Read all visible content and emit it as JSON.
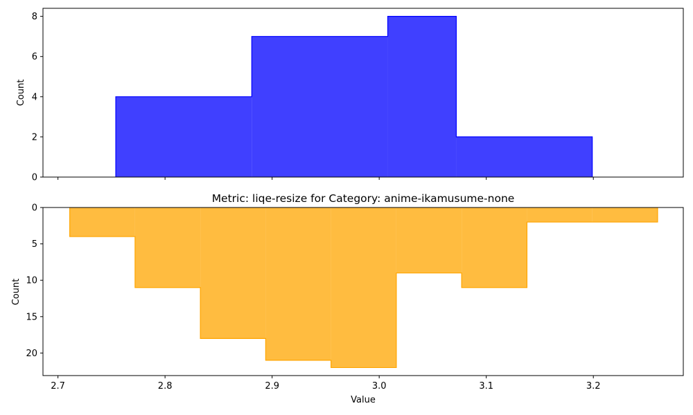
{
  "chart_data": [
    {
      "type": "bar",
      "subtype": "histogram-step-filled",
      "title": "",
      "xlabel": "",
      "ylabel": "Count",
      "color": "#0000ff",
      "alpha": 0.75,
      "bin_edges": [
        2.754,
        2.881,
        3.008,
        3.072,
        3.199
      ],
      "values": [
        4,
        7,
        8,
        2
      ],
      "xlim": [
        2.686,
        3.284
      ],
      "ylim": [
        0,
        8.4
      ],
      "xticks": [
        2.7,
        2.8,
        2.9,
        3.0,
        3.1,
        3.2
      ],
      "xtick_labels_visible": false,
      "yticks": [
        0,
        2,
        4,
        6,
        8
      ],
      "ytick_labels": [
        "0",
        "2",
        "4",
        "6",
        "8"
      ],
      "y_inverted": false,
      "grid": false
    },
    {
      "type": "bar",
      "subtype": "histogram-step-filled",
      "title": "Metric: liqe-resize for Category: anime-ikamusume-none",
      "xlabel": "Value",
      "ylabel": "Count",
      "color": "#ffa500",
      "alpha": 0.75,
      "bin_edges": [
        2.711,
        2.772,
        2.833,
        2.894,
        2.955,
        3.016,
        3.077,
        3.138,
        3.199,
        3.26
      ],
      "values": [
        4,
        11,
        18,
        21,
        22,
        9,
        11,
        2,
        2
      ],
      "xlim": [
        2.686,
        3.284
      ],
      "ylim": [
        23.1,
        0
      ],
      "xticks": [
        2.7,
        2.8,
        2.9,
        3.0,
        3.1,
        3.2
      ],
      "xtick_labels": [
        "2.7",
        "2.8",
        "2.9",
        "3.0",
        "3.1",
        "3.2"
      ],
      "xtick_labels_visible": true,
      "yticks": [
        0,
        5,
        10,
        15,
        20
      ],
      "ytick_labels": [
        "0",
        "5",
        "10",
        "15",
        "20"
      ],
      "y_inverted": true,
      "grid": false
    }
  ]
}
